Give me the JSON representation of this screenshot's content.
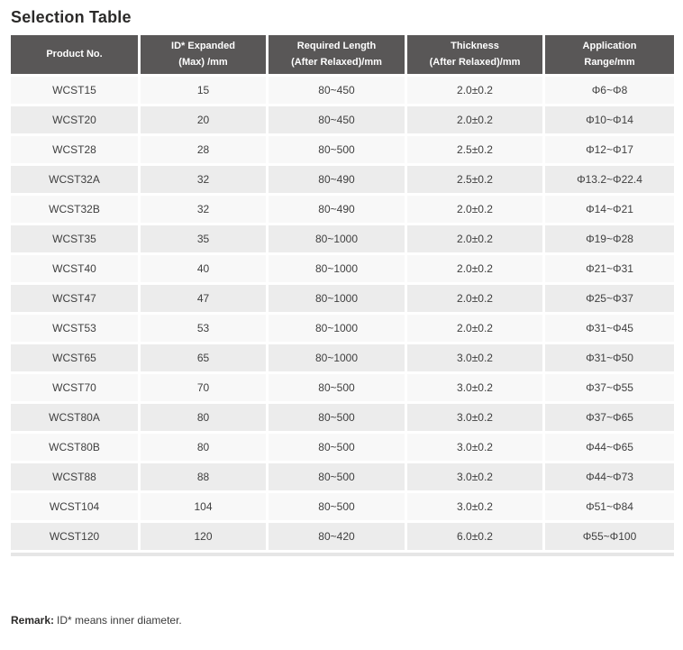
{
  "title": "Selection Table",
  "colors": {
    "header-bg": "#595757",
    "row-odd": "#f8f8f8",
    "row-even": "#ececec",
    "body-text": "#3f3f3f",
    "title-text": "#2b2a29"
  },
  "table": {
    "headers": [
      "Product No.",
      "ID* Expanded\n(Max) /mm",
      "Required Length\n(After Relaxed)/mm",
      "Thickness\n(After Relaxed)/mm",
      "Application\nRange/mm"
    ],
    "rows": [
      [
        "WCST15",
        "15",
        "80~450",
        "2.0±0.2",
        "Φ6~Φ8"
      ],
      [
        "WCST20",
        "20",
        "80~450",
        "2.0±0.2",
        "Φ10~Φ14"
      ],
      [
        "WCST28",
        "28",
        "80~500",
        "2.5±0.2",
        "Φ12~Φ17"
      ],
      [
        "WCST32A",
        "32",
        "80~490",
        "2.5±0.2",
        "Φ13.2~Φ22.4"
      ],
      [
        "WCST32B",
        "32",
        "80~490",
        "2.0±0.2",
        "Φ14~Φ21"
      ],
      [
        "WCST35",
        "35",
        "80~1000",
        "2.0±0.2",
        "Φ19~Φ28"
      ],
      [
        "WCST40",
        "40",
        "80~1000",
        "2.0±0.2",
        "Φ21~Φ31"
      ],
      [
        "WCST47",
        "47",
        "80~1000",
        "2.0±0.2",
        "Φ25~Φ37"
      ],
      [
        "WCST53",
        "53",
        "80~1000",
        "2.0±0.2",
        "Φ31~Φ45"
      ],
      [
        "WCST65",
        "65",
        "80~1000",
        "3.0±0.2",
        "Φ31~Φ50"
      ],
      [
        "WCST70",
        "70",
        "80~500",
        "3.0±0.2",
        "Φ37~Φ55"
      ],
      [
        "WCST80A",
        "80",
        "80~500",
        "3.0±0.2",
        "Φ37~Φ65"
      ],
      [
        "WCST80B",
        "80",
        "80~500",
        "3.0±0.2",
        "Φ44~Φ65"
      ],
      [
        "WCST88",
        "88",
        "80~500",
        "3.0±0.2",
        "Φ44~Φ73"
      ],
      [
        "WCST104",
        "104",
        "80~500",
        "3.0±0.2",
        "Φ51~Φ84"
      ],
      [
        "WCST120",
        "120",
        "80~420",
        "6.0±0.2",
        "Φ55~Φ100"
      ]
    ]
  },
  "remark": {
    "label": "Remark:",
    "text": "ID* means inner diameter."
  }
}
